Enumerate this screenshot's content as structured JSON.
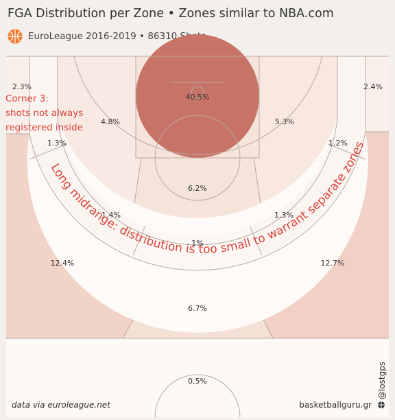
{
  "chart_data": {
    "type": "heatmap",
    "title": "FGA Distribution per Zone • Zones similar to NBA.com",
    "subtitle": "EuroLeague 2016-2019 • 86310 Shots",
    "unit": "%",
    "zones": [
      {
        "id": "restricted-area",
        "label": "40.5%",
        "value": 40.5,
        "color": "#c87368"
      },
      {
        "id": "paint-non-ra",
        "label": "6.2%",
        "value": 6.2,
        "color": "#f6e3da"
      },
      {
        "id": "short-mid-left",
        "label": "4.8%",
        "value": 4.8,
        "color": "#f8eae3"
      },
      {
        "id": "short-mid-right",
        "label": "5.3%",
        "value": 5.3,
        "color": "#f8e8e0"
      },
      {
        "id": "left-corner-mid",
        "label": "1.3%",
        "value": 1.3,
        "color": "#fbf5f1"
      },
      {
        "id": "right-corner-mid",
        "label": "1.2%",
        "value": 1.2,
        "color": "#fbf5f1"
      },
      {
        "id": "left-wing-mid",
        "label": "1.4%",
        "value": 1.4,
        "color": "#fbf5f1"
      },
      {
        "id": "right-wing-mid",
        "label": "1.3%",
        "value": 1.3,
        "color": "#fbf5f1"
      },
      {
        "id": "center-mid",
        "label": "1%",
        "value": 1.0,
        "color": "#fcf7f4"
      },
      {
        "id": "left-corner-3",
        "label": "2.3%",
        "value": 2.3,
        "color": "#faf0eb"
      },
      {
        "id": "right-corner-3",
        "label": "2.4%",
        "value": 2.4,
        "color": "#faf0eb"
      },
      {
        "id": "left-wing-3",
        "label": "12.4%",
        "value": 12.4,
        "color": "#f1d3c8"
      },
      {
        "id": "right-wing-3",
        "label": "12.7%",
        "value": 12.7,
        "color": "#f1d1c5"
      },
      {
        "id": "center-3",
        "label": "6.7%",
        "value": 6.7,
        "color": "#f5e0d6"
      },
      {
        "id": "backcourt",
        "label": "0.5%",
        "value": 0.5,
        "color": "#fdf9f7"
      }
    ],
    "annotations": {
      "corner3": [
        "Corner 3:",
        "shots not always",
        "registered inside"
      ],
      "long_midrange": "Long midrange: distribution is too small to warrant separate zones"
    }
  },
  "credits": {
    "source": "data via euroleague.net",
    "site": "basketballguru.gr",
    "handle": "@lostgps"
  },
  "colors": {
    "background": "#f3f0ec",
    "court": "#fdfaf7",
    "lines": "#b8a9a0",
    "annotation": "#d9433a",
    "logo": "#f07a2e"
  }
}
